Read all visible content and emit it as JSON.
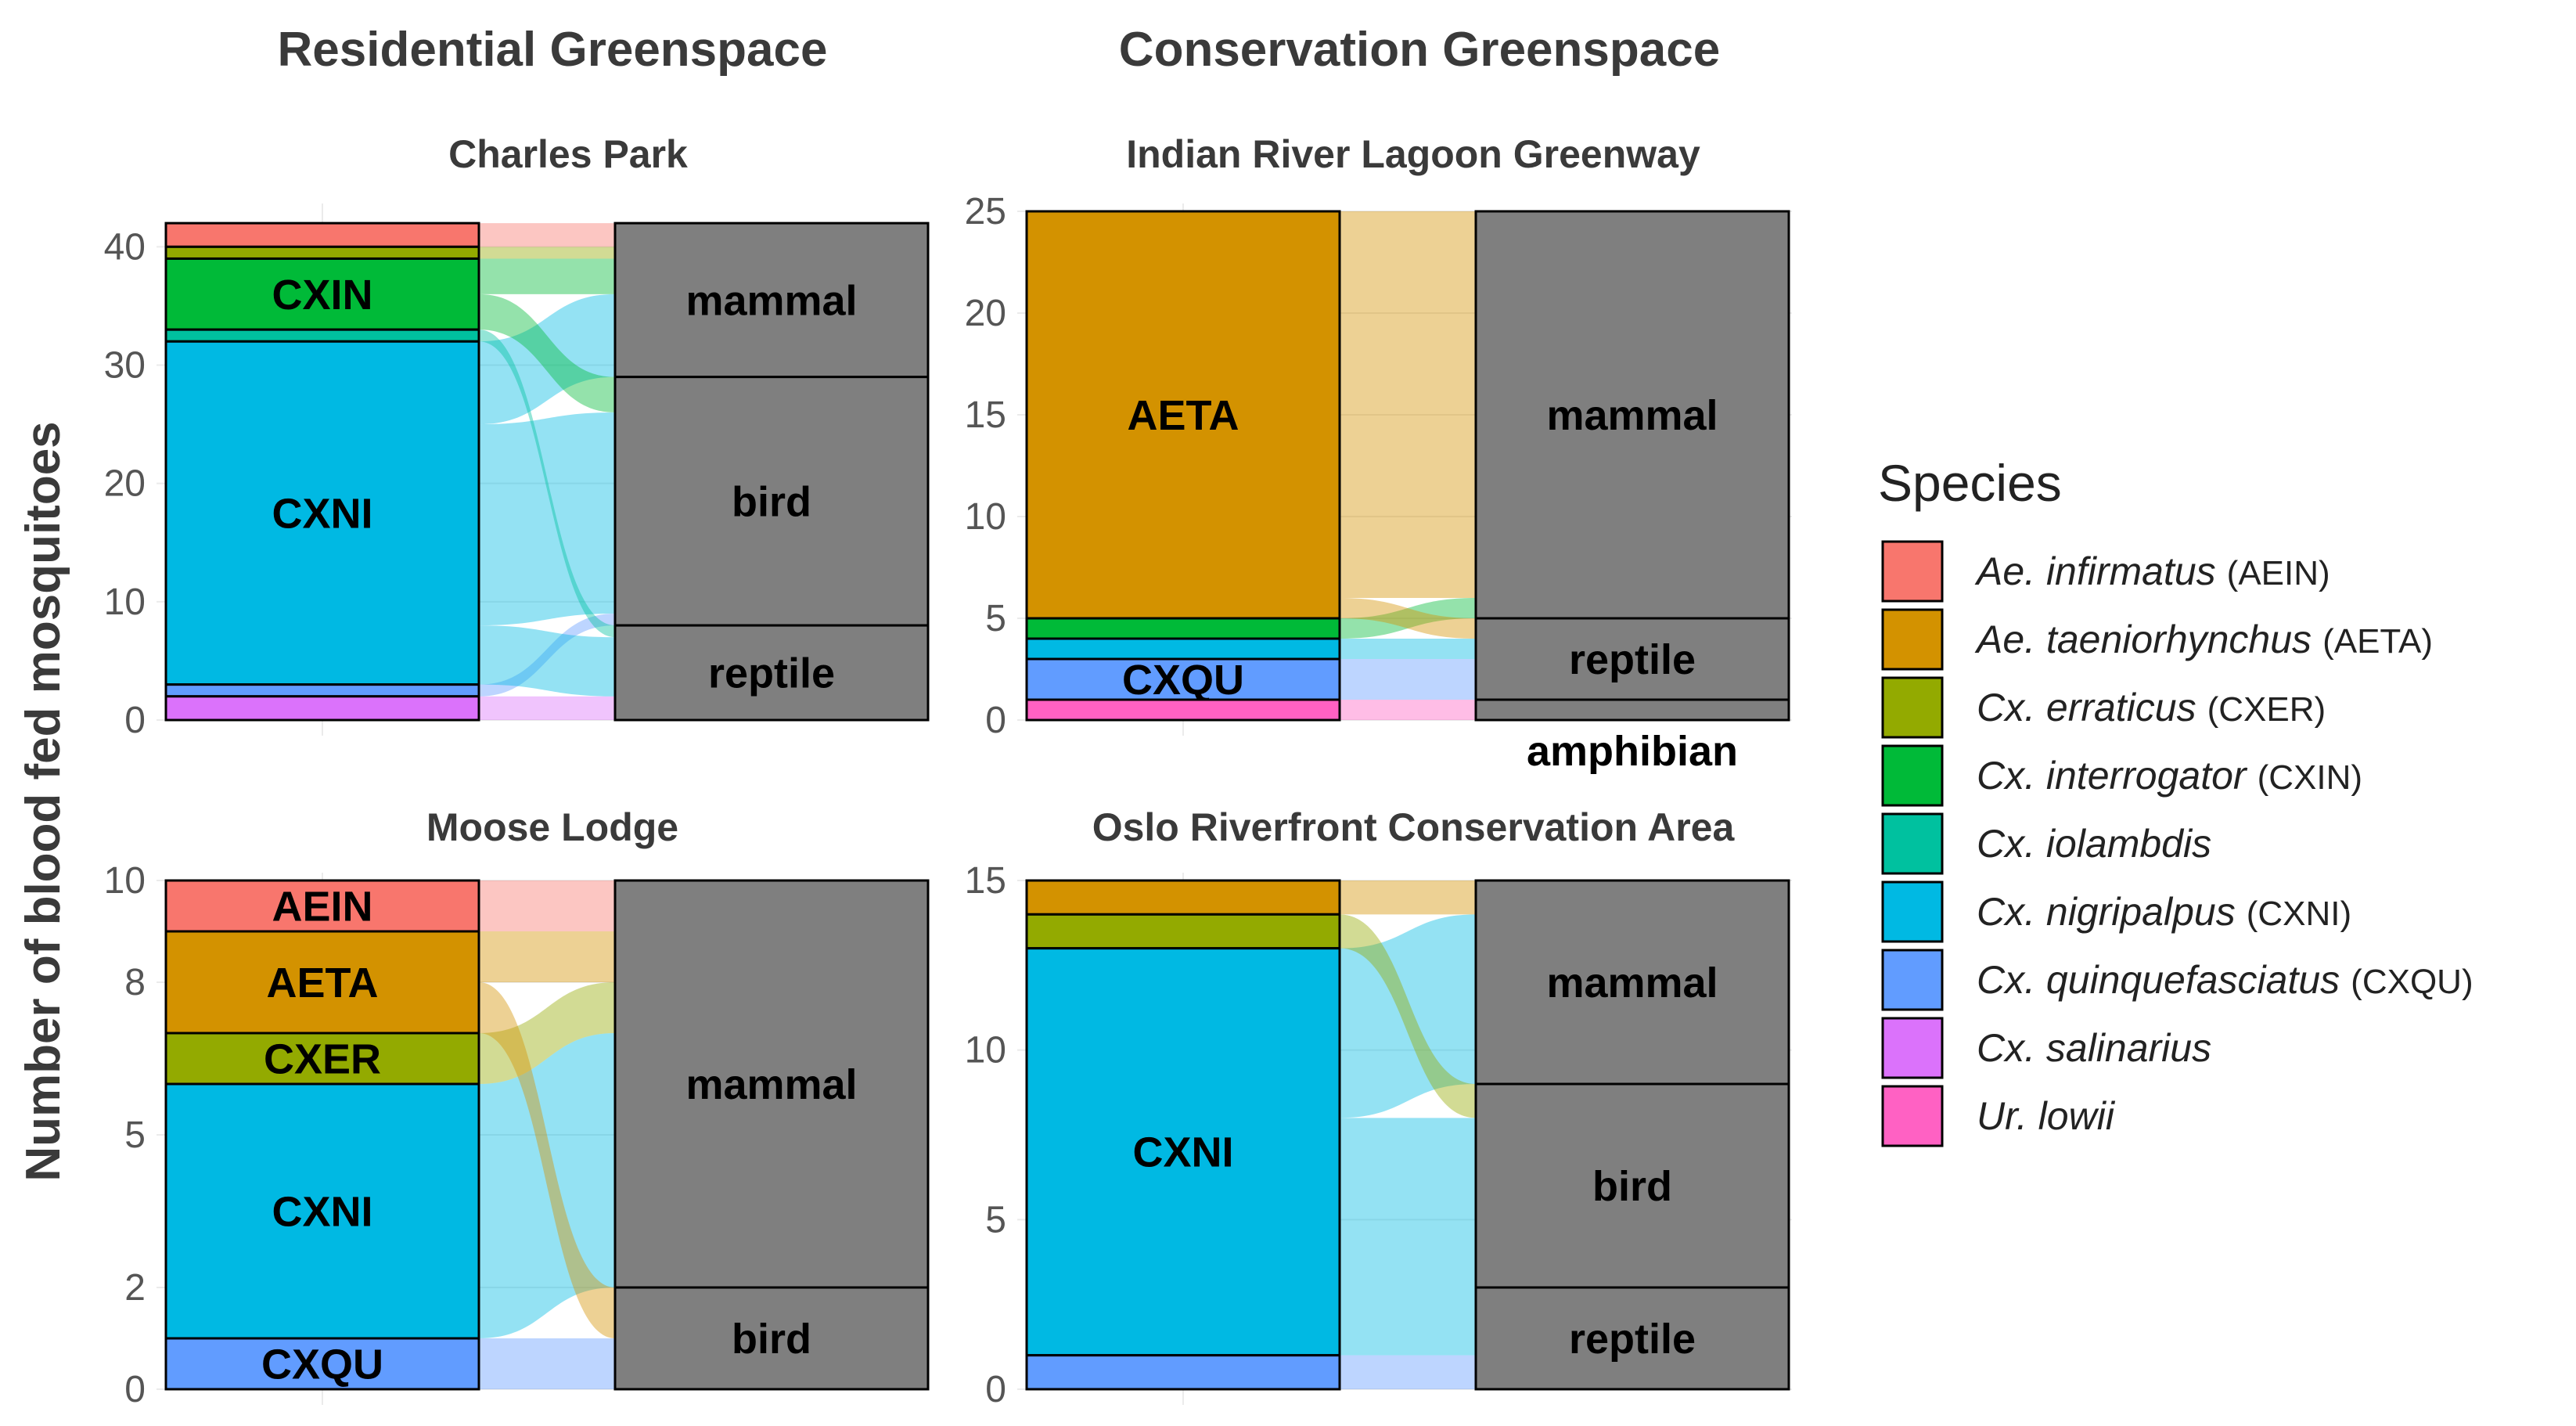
{
  "chart_data": {
    "type": "alluvial",
    "ylabel": "Number of blood fed mosquitoes",
    "columns": [
      "Residential Greenspace",
      "Conservation Greenspace"
    ],
    "legend": {
      "title": "Species",
      "placement": "right",
      "items": [
        {
          "key": "AEIN",
          "name": "Ae. infirmatus",
          "code": "(AEIN)",
          "color": "#F8766D"
        },
        {
          "key": "AETA",
          "name": "Ae. taeniorhynchus",
          "code": "(AETA)",
          "color": "#D39200"
        },
        {
          "key": "CXER",
          "name": "Cx. erraticus",
          "code": "(CXER)",
          "color": "#93AA00"
        },
        {
          "key": "CXIN",
          "name": "Cx. interrogator",
          "code": "(CXIN)",
          "color": "#00BA38"
        },
        {
          "key": "CXIO",
          "name": "Cx. iolambdis",
          "code": "",
          "color": "#00C19F"
        },
        {
          "key": "CXNI",
          "name": "Cx. nigripalpus",
          "code": "(CXNI)",
          "color": "#00B9E3"
        },
        {
          "key": "CXQU",
          "name": "Cx. quinquefasciatus",
          "code": "(CXQU)",
          "color": "#619CFF"
        },
        {
          "key": "CXSA",
          "name": "Cx. salinarius",
          "code": "",
          "color": "#DB72FB"
        },
        {
          "key": "URLO",
          "name": "Ur. lowii",
          "code": "",
          "color": "#FF61C3"
        }
      ]
    },
    "panels": [
      {
        "title": "Charles Park",
        "ylim": [
          0,
          43
        ],
        "yticks": [
          0,
          10,
          20,
          30,
          40
        ],
        "flows": [
          {
            "species": "CXSA",
            "host": "reptile",
            "count": 2
          },
          {
            "species": "CXQU",
            "host": "bird",
            "count": 1
          },
          {
            "species": "CXNI",
            "host": "mammal",
            "count": 7
          },
          {
            "species": "CXNI",
            "host": "bird",
            "count": 17
          },
          {
            "species": "CXNI",
            "host": "reptile",
            "count": 5
          },
          {
            "species": "CXIO",
            "host": "reptile",
            "count": 1
          },
          {
            "species": "CXIN",
            "host": "mammal",
            "count": 3
          },
          {
            "species": "CXIN",
            "host": "bird",
            "count": 3
          },
          {
            "species": "CXER",
            "host": "mammal",
            "count": 1
          },
          {
            "species": "AEIN",
            "host": "mammal",
            "count": 2
          }
        ],
        "stratum_labels": {
          "CXIN": "CXIN",
          "CXNI": "CXNI"
        },
        "host_labels": {
          "mammal": "mammal",
          "bird": "bird",
          "reptile": "reptile"
        }
      },
      {
        "title": "Indian River Lagoon Greenway",
        "ylim": [
          0,
          25
        ],
        "yticks": [
          0,
          5,
          10,
          15,
          20,
          25
        ],
        "flows": [
          {
            "species": "URLO",
            "host": "amphibian",
            "count": 1
          },
          {
            "species": "CXQU",
            "host": "reptile",
            "count": 2
          },
          {
            "species": "CXNI",
            "host": "reptile",
            "count": 1
          },
          {
            "species": "CXIN",
            "host": "mammal",
            "count": 1
          },
          {
            "species": "AETA",
            "host": "mammal",
            "count": 19
          },
          {
            "species": "AETA",
            "host": "reptile",
            "count": 1
          }
        ],
        "stratum_labels": {
          "AETA": "AETA",
          "CXQU": "CXQU"
        },
        "host_labels": {
          "mammal": "mammal",
          "reptile": "reptile",
          "amphibian": "amphibian"
        }
      },
      {
        "title": "Moose Lodge",
        "ylim": [
          0,
          10
        ],
        "yticks": [
          0,
          2,
          5,
          8,
          10
        ],
        "flows": [
          {
            "species": "CXQU",
            "host": "bird",
            "count": 1
          },
          {
            "species": "CXNI",
            "host": "mammal",
            "count": 5
          },
          {
            "species": "CXER",
            "host": "mammal",
            "count": 1
          },
          {
            "species": "AETA",
            "host": "bird",
            "count": 1
          },
          {
            "species": "AETA",
            "host": "mammal",
            "count": 1
          },
          {
            "species": "AEIN",
            "host": "mammal",
            "count": 1
          }
        ],
        "stratum_labels": {
          "AEIN": "AEIN",
          "AETA": "AETA",
          "CXER": "CXER",
          "CXNI": "CXNI",
          "CXQU": "CXQU"
        },
        "host_labels": {
          "mammal": "mammal",
          "bird": "bird"
        }
      },
      {
        "title": "Oslo Riverfront Conservation Area",
        "ylim": [
          0,
          15
        ],
        "yticks": [
          0,
          5,
          10,
          15
        ],
        "flows": [
          {
            "species": "CXQU",
            "host": "reptile",
            "count": 1
          },
          {
            "species": "CXNI",
            "host": "reptile",
            "count": 2
          },
          {
            "species": "CXNI",
            "host": "bird",
            "count": 5
          },
          {
            "species": "CXNI",
            "host": "mammal",
            "count": 5
          },
          {
            "species": "CXER",
            "host": "bird",
            "count": 1
          },
          {
            "species": "AETA",
            "host": "mammal",
            "count": 1
          }
        ],
        "stratum_labels": {
          "CXNI": "CXNI"
        },
        "host_labels": {
          "mammal": "mammal",
          "bird": "bird",
          "reptile": "reptile"
        }
      }
    ]
  }
}
